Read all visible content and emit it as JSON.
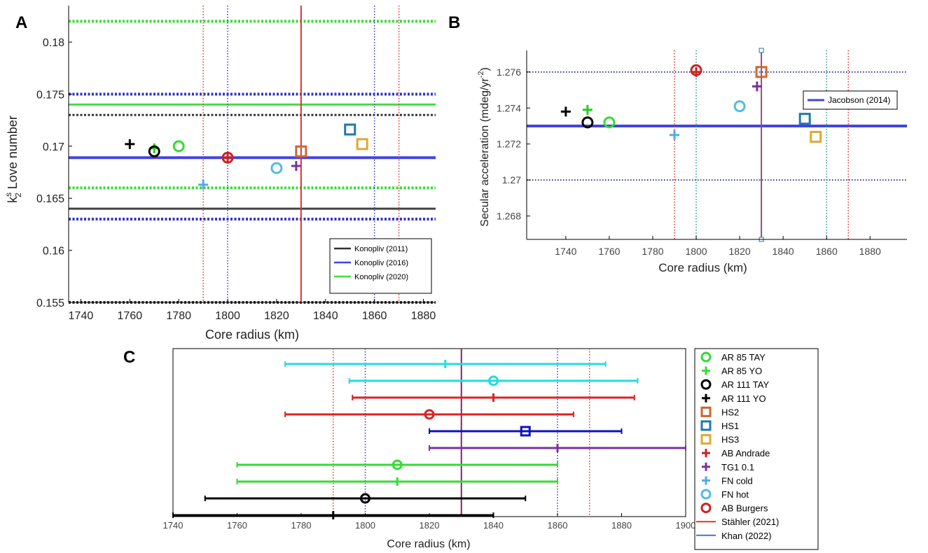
{
  "chart_data": [
    {
      "panel": "A",
      "type": "scatter",
      "xlabel": "Core radius (km)",
      "ylabel_k": "k",
      "ylabel_sup": "s",
      "ylabel_sub": "2",
      "ylabel_rest": " Love number",
      "xlim": [
        1735,
        1885
      ],
      "ylim": [
        0.155,
        0.1835
      ],
      "xticks": [
        1740,
        1760,
        1780,
        1800,
        1820,
        1840,
        1860,
        1880
      ],
      "yticks": [
        0.155,
        0.16,
        0.165,
        0.17,
        0.175,
        0.18
      ],
      "ytick_labels": [
        "0.155",
        "0.16",
        "0.165",
        "0.17",
        "0.175",
        "0.18"
      ],
      "hlines": [
        {
          "y": 0.182,
          "color": "#33dd33",
          "style": "dotted",
          "width": 4
        },
        {
          "y": 0.175,
          "color": "#3333cc",
          "style": "dotted",
          "width": 4
        },
        {
          "y": 0.174,
          "color": "#44dd44",
          "style": "solid",
          "width": 3
        },
        {
          "y": 0.173,
          "color": "#333333",
          "style": "dotted",
          "width": 3
        },
        {
          "y": 0.1689,
          "color": "#4444dd",
          "style": "solid",
          "width": 4
        },
        {
          "y": 0.166,
          "color": "#33dd33",
          "style": "dotted",
          "width": 4
        },
        {
          "y": 0.164,
          "color": "#444444",
          "style": "solid",
          "width": 3
        },
        {
          "y": 0.163,
          "color": "#3333cc",
          "style": "dotted",
          "width": 4
        },
        {
          "y": 0.155,
          "color": "#333333",
          "style": "dotted",
          "width": 4
        }
      ],
      "vlines": [
        {
          "x": 1790,
          "color": "#dd3333",
          "style": "dotted",
          "width": 1.5
        },
        {
          "x": 1800,
          "color": "#3333bb",
          "style": "dotted",
          "width": 1.5
        },
        {
          "x": 1830,
          "color": "#e03030",
          "style": "solid",
          "width": 2
        },
        {
          "x": 1860,
          "color": "#3333bb",
          "style": "dotted",
          "width": 1.5
        },
        {
          "x": 1870,
          "color": "#dd3333",
          "style": "dotted",
          "width": 1.5
        }
      ],
      "points": [
        {
          "label": "AR 111 YO",
          "x": 1760,
          "y": 0.1702,
          "marker": "plus",
          "color": "#000000"
        },
        {
          "label": "AR 85 YO",
          "x": 1770,
          "y": 0.1698,
          "marker": "plus",
          "color": "#22cc22"
        },
        {
          "label": "AR 111 TAY",
          "x": 1770,
          "y": 0.1695,
          "marker": "circle",
          "color": "#000000"
        },
        {
          "label": "AR 85 TAY",
          "x": 1780,
          "y": 0.17,
          "marker": "circle",
          "color": "#33dd33"
        },
        {
          "label": "FN cold",
          "x": 1790,
          "y": 0.1663,
          "marker": "plus",
          "color": "#55aadd"
        },
        {
          "label": "AB Andrade",
          "x": 1800,
          "y": 0.1689,
          "marker": "plus",
          "color": "#cc2222"
        },
        {
          "label": "AB Burgers",
          "x": 1800,
          "y": 0.1689,
          "marker": "circle",
          "color": "#cc2222"
        },
        {
          "label": "FN hot",
          "x": 1820,
          "y": 0.1679,
          "marker": "circle",
          "color": "#55bbdd"
        },
        {
          "label": "TG1 0.1",
          "x": 1828,
          "y": 0.1681,
          "marker": "plus",
          "color": "#773399"
        },
        {
          "label": "HS2",
          "x": 1830,
          "y": 0.1695,
          "marker": "square",
          "color": "#cc6633"
        },
        {
          "label": "HS1",
          "x": 1850,
          "y": 0.1716,
          "marker": "square",
          "color": "#2277aa"
        },
        {
          "label": "HS3",
          "x": 1855,
          "y": 0.1702,
          "marker": "square",
          "color": "#ddaa33"
        }
      ],
      "legend": {
        "placement": "bottom-right",
        "entries": [
          {
            "name": "Konopliv (2011)",
            "color": "#333333"
          },
          {
            "name": "Konopliv (2016)",
            "color": "#4444dd"
          },
          {
            "name": "Konopliv (2020)",
            "color": "#44dd44"
          }
        ]
      }
    },
    {
      "panel": "B",
      "type": "scatter",
      "xlabel": "Core radius (km)",
      "ylabel_main": "Secular acceleration (mdeg/yr",
      "ylabel_sup": "-2",
      "ylabel_end": ")",
      "xlim": [
        1722,
        1897
      ],
      "ylim": [
        1.2667,
        1.2772
      ],
      "xticks": [
        1740,
        1760,
        1780,
        1800,
        1820,
        1840,
        1860,
        1880
      ],
      "yticks": [
        1.268,
        1.27,
        1.272,
        1.274,
        1.276
      ],
      "ytick_labels": [
        "1.268",
        "1.27",
        "1.272",
        "1.274",
        "1.276"
      ],
      "hlines": [
        {
          "y": 1.276,
          "color": "#333399",
          "style": "dotted",
          "width": 2
        },
        {
          "y": 1.273,
          "color": "#4444dd",
          "style": "solid",
          "width": 4
        },
        {
          "y": 1.27,
          "color": "#333399",
          "style": "dotted",
          "width": 2
        }
      ],
      "vlines": [
        {
          "x": 1790,
          "color": "#dd3333",
          "style": "dotted",
          "width": 1.5
        },
        {
          "x": 1800,
          "color": "#229988",
          "style": "dotted",
          "width": 1.5
        },
        {
          "x": 1830,
          "color": "#885577",
          "style": "solid",
          "width": 2
        },
        {
          "x": 1860,
          "color": "#229988",
          "style": "dotted",
          "width": 1.5
        },
        {
          "x": 1870,
          "color": "#dd3333",
          "style": "dotted",
          "width": 1.5
        }
      ],
      "points": [
        {
          "label": "AR 111 YO",
          "x": 1740,
          "y": 1.2738,
          "marker": "plus",
          "color": "#000000"
        },
        {
          "label": "AR 85 YO",
          "x": 1750,
          "y": 1.2739,
          "marker": "plus",
          "color": "#22cc22"
        },
        {
          "label": "AR 111 TAY",
          "x": 1750,
          "y": 1.2732,
          "marker": "circle",
          "color": "#000000"
        },
        {
          "label": "AR 85 TAY",
          "x": 1760,
          "y": 1.2732,
          "marker": "circle",
          "color": "#33dd33"
        },
        {
          "label": "FN cold",
          "x": 1790,
          "y": 1.2725,
          "marker": "plus",
          "color": "#55aadd"
        },
        {
          "label": "AB Burgers",
          "x": 1800,
          "y": 1.2761,
          "marker": "circle",
          "color": "#cc2222"
        },
        {
          "label": "AB Andrade",
          "x": 1800,
          "y": 1.276,
          "marker": "plus",
          "color": "#cc2222"
        },
        {
          "label": "FN hot",
          "x": 1820,
          "y": 1.2741,
          "marker": "circle",
          "color": "#55bbdd"
        },
        {
          "label": "TG1 0.1",
          "x": 1828,
          "y": 1.2752,
          "marker": "plus",
          "color": "#773399"
        },
        {
          "label": "HS2",
          "x": 1830,
          "y": 1.276,
          "marker": "square",
          "color": "#cc6633"
        },
        {
          "label": "HS1",
          "x": 1850,
          "y": 1.2734,
          "marker": "square",
          "color": "#2277aa"
        },
        {
          "label": "HS3",
          "x": 1855,
          "y": 1.2724,
          "marker": "square",
          "color": "#ddaa33"
        }
      ],
      "legend": {
        "placement": "top-right",
        "entries": [
          {
            "name": "Jacobson (2014)",
            "color": "#4444dd"
          }
        ]
      }
    },
    {
      "panel": "C",
      "type": "errorbar",
      "xlabel": "Core radius (km)",
      "xlim": [
        1740,
        1900
      ],
      "xticks": [
        1740,
        1760,
        1780,
        1800,
        1820,
        1840,
        1860,
        1880,
        1900
      ],
      "vlines": [
        {
          "x": 1790,
          "color": "#dd3333",
          "style": "dotted",
          "width": 1.5
        },
        {
          "x": 1800,
          "color": "#3333bb",
          "style": "dotted",
          "width": 1.5
        },
        {
          "x": 1830,
          "color": "#882266",
          "style": "solid",
          "width": 2
        },
        {
          "x": 1860,
          "color": "#3333bb",
          "style": "dotted",
          "width": 1.5
        },
        {
          "x": 1870,
          "color": "#dd3333",
          "style": "dotted",
          "width": 1.5
        }
      ],
      "rows": [
        {
          "label": "FN cold",
          "center": 1825,
          "low": 1775,
          "high": 1875,
          "marker": "plus",
          "color": "#22dddd"
        },
        {
          "label": "FN hot",
          "center": 1840,
          "low": 1795,
          "high": 1885,
          "marker": "circle",
          "color": "#22dddd"
        },
        {
          "label": "AB Andrade",
          "center": 1840,
          "low": 1796,
          "high": 1884,
          "marker": "plus",
          "color": "#dd2222"
        },
        {
          "label": "AB Burgers",
          "center": 1820,
          "low": 1775,
          "high": 1865,
          "marker": "circle",
          "color": "#dd2222"
        },
        {
          "label": "HS1",
          "center": 1850,
          "low": 1820,
          "high": 1880,
          "marker": "square",
          "color": "#1111bb"
        },
        {
          "label": "TG1 0.1",
          "center": 1860,
          "low": 1820,
          "high": 1900,
          "marker": "plus",
          "color": "#773399"
        },
        {
          "label": "AR 85 TAY",
          "center": 1810,
          "low": 1760,
          "high": 1860,
          "marker": "circle",
          "color": "#33dd33"
        },
        {
          "label": "AR 85 YO",
          "center": 1810,
          "low": 1760,
          "high": 1860,
          "marker": "plus",
          "color": "#33dd33"
        },
        {
          "label": "AR 111 TAY",
          "center": 1800,
          "low": 1750,
          "high": 1850,
          "marker": "circle",
          "color": "#000000"
        },
        {
          "label": "AR 111 YO",
          "center": 1790,
          "low": 1740,
          "high": 1840,
          "marker": "plus",
          "color": "#000000"
        }
      ],
      "legend": {
        "placement": "outside-right",
        "entries": [
          {
            "name": "AR 85 TAY",
            "marker": "circle",
            "color": "#33dd33"
          },
          {
            "name": "AR 85 YO",
            "marker": "plus",
            "color": "#33dd33"
          },
          {
            "name": "AR 111 TAY",
            "marker": "circle",
            "color": "#000000"
          },
          {
            "name": "AR 111 YO",
            "marker": "plus",
            "color": "#000000"
          },
          {
            "name": "HS2",
            "marker": "square",
            "color": "#cc6633"
          },
          {
            "name": "HS1",
            "marker": "square",
            "color": "#2277aa"
          },
          {
            "name": "HS3",
            "marker": "square",
            "color": "#ddaa33"
          },
          {
            "name": "AB Andrade",
            "marker": "plus",
            "color": "#cc2222"
          },
          {
            "name": "TG1 0.1",
            "marker": "plus",
            "color": "#773399"
          },
          {
            "name": "FN cold",
            "marker": "plus",
            "color": "#55aadd"
          },
          {
            "name": "FN hot",
            "marker": "circle",
            "color": "#55bbdd"
          },
          {
            "name": "AB Burgers",
            "marker": "circle",
            "color": "#cc2222"
          },
          {
            "name": "Stähler (2021)",
            "marker": "line",
            "color": "#dd3333"
          },
          {
            "name": "Khan (2022)",
            "marker": "line",
            "color": "#4477cc"
          }
        ]
      }
    }
  ]
}
